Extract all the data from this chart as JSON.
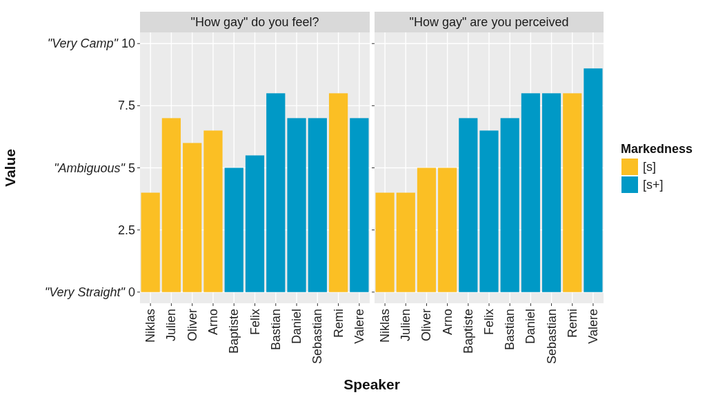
{
  "chart_data": [
    {
      "type": "bar",
      "title": "\"How gay\" do you feel?",
      "xlabel": "Speaker",
      "ylabel": "Value",
      "stacked": true,
      "grid": true,
      "legend": false,
      "tick_labels": true,
      "categories": [
        "Niklas",
        "Julien",
        "Oliver",
        "Arno",
        "Baptiste",
        "Felix",
        "Bastian",
        "Daniel",
        "Sebastian",
        "Remi",
        "Valere"
      ],
      "ylim": [
        -0.45,
        10.45
      ],
      "yticks": [
        {
          "value": 0,
          "label": "\"Very Straight\" 0"
        },
        2.5,
        {
          "value": 5,
          "label": "\"Ambiguous\" 5"
        },
        7.5,
        {
          "value": 10,
          "label": "\"Very Camp\" 10"
        }
      ],
      "series": [
        {
          "color": "#fbbf24",
          "values": [
            4,
            7,
            6,
            6.5,
            null,
            null,
            null,
            null,
            null,
            8,
            null
          ]
        },
        {
          "color": "#0099c6",
          "values": [
            null,
            null,
            null,
            null,
            5,
            5.5,
            8,
            7,
            7,
            null,
            7
          ]
        }
      ]
    },
    {
      "type": "bar",
      "title": "\"How gay\" are you perceived",
      "stacked": true,
      "grid": true,
      "legend": "right",
      "legend_title": "Markedness",
      "tick_labels": "x",
      "categories": [
        "Niklas",
        "Julien",
        "Oliver",
        "Arno",
        "Baptiste",
        "Felix",
        "Bastian",
        "Daniel",
        "Sebastian",
        "Remi",
        "Valere"
      ],
      "ylim": [
        -0.45,
        10.45
      ],
      "yticks": [
        0,
        2.5,
        5,
        7.5,
        10
      ],
      "series": [
        {
          "name": "[s]",
          "color": "#fbbf24",
          "values": [
            4,
            4,
            5,
            5,
            null,
            null,
            null,
            null,
            null,
            8,
            null
          ]
        },
        {
          "name": "[s+]",
          "color": "#0099c6",
          "values": [
            null,
            null,
            null,
            null,
            7,
            6.5,
            7,
            8,
            8,
            null,
            9
          ]
        }
      ]
    }
  ]
}
